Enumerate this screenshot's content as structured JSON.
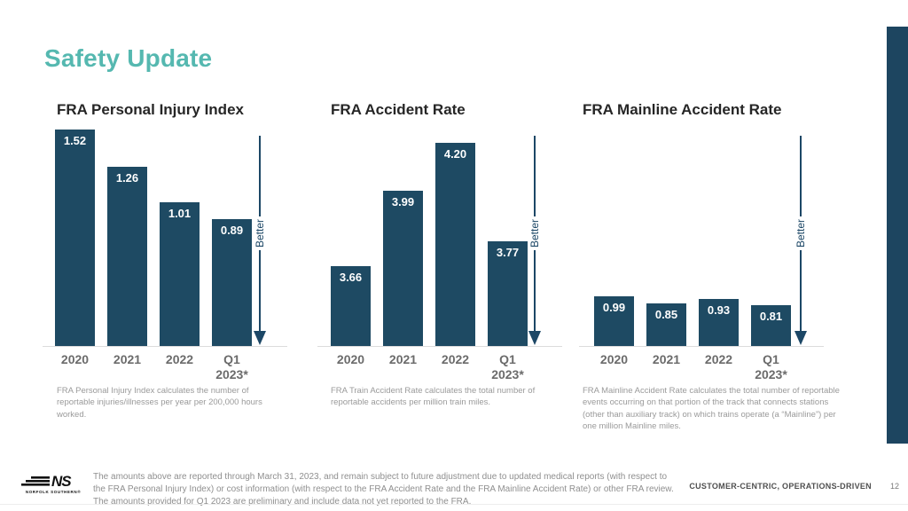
{
  "slide": {
    "title": "Safety Update",
    "tagline": "CUSTOMER-CENTRIC, OPERATIONS-DRIVEN",
    "page_number": "12",
    "logo": {
      "ns": "NS",
      "caption": "NORFOLK SOUTHERN®"
    },
    "disclaimer": "The amounts above are reported through March 31, 2023, and remain subject to future adjustment due to updated medical reports (with respect to the FRA Personal Injury Index) or cost information (with respect to the FRA Accident Rate and the FRA Mainline Accident Rate) or other FRA review. The amounts provided for Q1 2023 are preliminary and include data not yet reported to the FRA."
  },
  "colors": {
    "accent_teal": "#55b8b0",
    "bar_navy": "#1e4a63",
    "arrow_navy": "#1c4766",
    "right_bar_navy": "#1d4560"
  },
  "chart_data": [
    {
      "type": "bar",
      "title": "FRA Personal Injury Index",
      "categories": [
        "2020",
        "2021",
        "2022",
        "Q1 2023*"
      ],
      "values": [
        1.52,
        1.26,
        1.01,
        0.89
      ],
      "value_labels": [
        "1.52",
        "1.26",
        "1.01",
        "0.89"
      ],
      "ylim": [
        0,
        1.52
      ],
      "better_label": "Better",
      "legend_position": "none",
      "grid": false,
      "footnote": "FRA Personal Injury Index calculates the number of reportable injuries/illnesses per year per 200,000 hours worked."
    },
    {
      "type": "bar",
      "title": "FRA Accident Rate",
      "categories": [
        "2020",
        "2021",
        "2022",
        "Q1 2023*"
      ],
      "values": [
        3.66,
        3.99,
        4.2,
        3.77
      ],
      "value_labels": [
        "3.66",
        "3.99",
        "4.20",
        "3.77"
      ],
      "ylim": [
        3.31,
        4.2
      ],
      "better_label": "Better",
      "legend_position": "none",
      "grid": false,
      "footnote": "FRA Train Accident Rate calculates the total number of reportable accidents per million train miles."
    },
    {
      "type": "bar",
      "title": "FRA Mainline Accident Rate",
      "categories": [
        "2020",
        "2021",
        "2022",
        "Q1 2023*"
      ],
      "values": [
        0.99,
        0.85,
        0.93,
        0.81
      ],
      "value_labels": [
        "0.99",
        "0.85",
        "0.93",
        "0.81"
      ],
      "ylim": [
        0,
        0.99
      ],
      "better_label": "Better",
      "legend_position": "none",
      "grid": false,
      "footnote": "FRA Mainline Accident Rate calculates the total number of reportable events occurring on that portion of the track that connects stations (other than auxiliary track) on which trains operate (a “Mainline”) per one million Mainline miles."
    }
  ]
}
